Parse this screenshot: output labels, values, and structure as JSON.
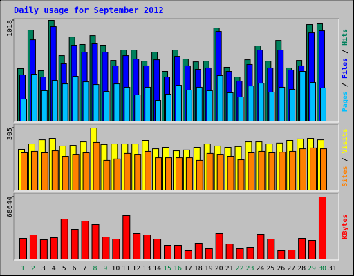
{
  "title": "Daily usage for September 2012",
  "chart_data": [
    {
      "type": "bar",
      "ylim": [
        0,
        1018
      ],
      "yticks": [
        1018
      ],
      "legend_separator": " / ",
      "legend_order": [
        "Pages",
        "Files",
        "Hits"
      ],
      "series": [
        {
          "name": "Hits",
          "color": "#00805c",
          "values": [
            530,
            920,
            509,
            1018,
            662,
            850,
            774,
            864,
            767,
            613,
            718,
            718,
            606,
            697,
            502,
            718,
            627,
            599,
            606,
            941,
            544,
            446,
            620,
            760,
            606,
            815,
            537,
            613,
            976,
            983,
            null
          ]
        },
        {
          "name": "Files",
          "color": "#0000ff",
          "values": [
            467,
            822,
            446,
            955,
            579,
            767,
            697,
            781,
            697,
            558,
            662,
            627,
            558,
            620,
            446,
            655,
            558,
            523,
            537,
            906,
            502,
            404,
            572,
            718,
            537,
            718,
            516,
            558,
            892,
            913,
            null
          ]
        },
        {
          "name": "Pages",
          "color": "#00c0ff",
          "values": [
            223,
            474,
            307,
            411,
            376,
            453,
            397,
            369,
            300,
            376,
            342,
            265,
            342,
            209,
            272,
            362,
            314,
            342,
            307,
            460,
            286,
            244,
            355,
            383,
            293,
            342,
            321,
            502,
            390,
            335,
            null
          ]
        }
      ]
    },
    {
      "type": "bar",
      "ylim": [
        0,
        305
      ],
      "yticks": [
        305
      ],
      "legend_separator": " / ",
      "legend_order": [
        "Sites",
        "Visits"
      ],
      "series": [
        {
          "name": "Visits",
          "color": "#ffff00",
          "values": [
            200,
            227,
            247,
            254,
            217,
            220,
            237,
            305,
            224,
            227,
            227,
            227,
            244,
            203,
            210,
            193,
            197,
            210,
            227,
            217,
            210,
            214,
            237,
            237,
            227,
            231,
            244,
            251,
            254,
            247,
            null
          ]
        },
        {
          "name": "Sites",
          "color": "#ff8000",
          "values": [
            183,
            190,
            183,
            193,
            166,
            176,
            183,
            234,
            146,
            153,
            180,
            176,
            190,
            159,
            159,
            159,
            159,
            146,
            180,
            176,
            166,
            149,
            183,
            190,
            183,
            186,
            190,
            203,
            207,
            203,
            null
          ]
        }
      ]
    },
    {
      "type": "bar",
      "ylim": [
        0,
        68644
      ],
      "yticks": [
        68644
      ],
      "legend_order": [
        "KBytes"
      ],
      "series": [
        {
          "name": "KBytes",
          "color": "#ff0000",
          "values": [
            22881,
            26695,
            21356,
            23644,
            44237,
            32796,
            41949,
            38135,
            24406,
            22118,
            48050,
            28220,
            26695,
            22118,
            15254,
            15254,
            9152,
            17542,
            11441,
            28220,
            16779,
            11441,
            12966,
            27457,
            22118,
            9152,
            9915,
            22881,
            20593,
            68644,
            null
          ]
        }
      ],
      "categories": [
        "1",
        "2",
        "3",
        "4",
        "5",
        "6",
        "7",
        "8",
        "9",
        "10",
        "11",
        "12",
        "13",
        "14",
        "15",
        "16",
        "17",
        "18",
        "19",
        "20",
        "21",
        "22",
        "23",
        "24",
        "25",
        "26",
        "27",
        "28",
        "29",
        "30",
        "31"
      ],
      "category_label_colors": [
        "#008040",
        "#008040",
        "#000000",
        "#000000",
        "#000000",
        "#000000",
        "#000000",
        "#008040",
        "#008040",
        "#000000",
        "#000000",
        "#000000",
        "#000000",
        "#000000",
        "#008040",
        "#008040",
        "#000000",
        "#000000",
        "#000000",
        "#000000",
        "#000000",
        "#008040",
        "#008040",
        "#000000",
        "#000000",
        "#000000",
        "#000000",
        "#000000",
        "#008040",
        "#008040",
        "#000000"
      ]
    }
  ]
}
